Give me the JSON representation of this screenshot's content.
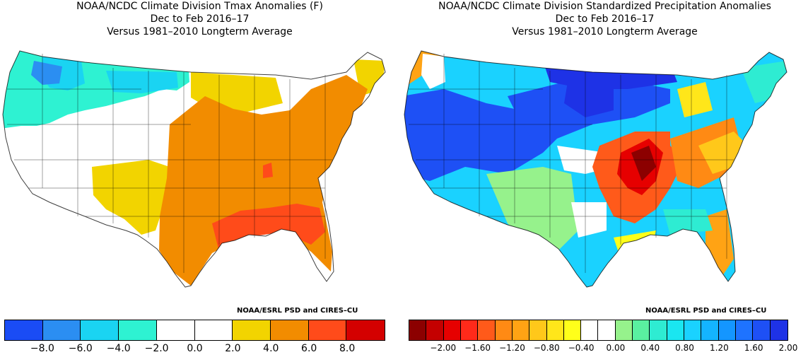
{
  "left_panel": {
    "title_line1": "NOAA/NCDC Climate Division Tmax Anomalies (F)",
    "title_line2": "Dec to Feb 2016–17",
    "title_line3": "Versus 1981–2010 Longterm Average",
    "credit": "NOAA/ESRL PSD and CIRES–CU",
    "legend_colors": [
      "#1a4cf5",
      "#2b8ef2",
      "#1ad4f2",
      "#2ef2d2",
      "#ffffff",
      "#ffffff",
      "#f2d400",
      "#f28c00",
      "#ff4b1a",
      "#d40000"
    ],
    "legend_ticks": [
      "−8.0",
      "−6.0",
      "−4.0",
      "−2.0",
      "0.0",
      "2.0",
      "4.0",
      "6.0",
      "8.0"
    ],
    "regions": {
      "northwest": "cool",
      "north_central": "cool",
      "west_southwest": "neutral",
      "great_plains_south": "warm",
      "central_east": "warmer",
      "gulf_coast_southeast": "warmest"
    }
  },
  "right_panel": {
    "title_line1": "NOAA/NCDC Climate Division Standardized Precipitation Anomalies",
    "title_line2": "Dec to Feb 2016–17",
    "title_line3": "Versus 1981–2010 Longterm Average",
    "credit": "NOAA/ESRL PSD and CIRES–CU",
    "legend_colors": [
      "#8c0000",
      "#c40000",
      "#e60000",
      "#ff2a1a",
      "#ff5a1a",
      "#ff8a14",
      "#ffa314",
      "#ffc81a",
      "#ffe61a",
      "#ffff1a",
      "#ffffff",
      "#ffffff",
      "#96f28c",
      "#5af0a0",
      "#2eecd2",
      "#1ae6f0",
      "#1ad2ff",
      "#14b4ff",
      "#1496ff",
      "#1e73ff",
      "#1e50f5",
      "#1e32e6"
    ],
    "legend_ticks": [
      "−2.00",
      "−1.60",
      "−1.20",
      "−0.80",
      "−0.40",
      "0.00",
      "0.40",
      "0.80",
      "1.20",
      "1.60",
      "2.00"
    ],
    "regions": {
      "west": "wet",
      "northern_plains": "very_wet",
      "mid_mississippi_valley": "very_dry",
      "southeast_atlantic": "dry",
      "south_central": "wet"
    }
  }
}
